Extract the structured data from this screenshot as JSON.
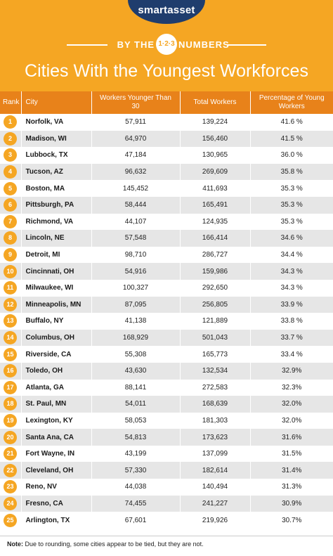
{
  "header": {
    "logo": "smartasset",
    "by_the": "BY THE",
    "badge": "1·2·3",
    "numbers": "NUMBERS",
    "title": "Cities With the Youngest Workforces",
    "background_color": "#f5a623",
    "logo_color": "#1f3d6d"
  },
  "table": {
    "columns": [
      "Rank",
      "City",
      "Workers Younger Than 30",
      "Total Workers",
      "Percentage of Young Workers"
    ],
    "header_color": "#e8821a",
    "rows": [
      {
        "rank": "1",
        "city": "Norfolk, VA",
        "young": "57,911",
        "total": "139,224",
        "pct": "41.6 %"
      },
      {
        "rank": "2",
        "city": "Madison, WI",
        "young": "64,970",
        "total": "156,460",
        "pct": "41.5 %"
      },
      {
        "rank": "3",
        "city": "Lubbock, TX",
        "young": "47,184",
        "total": "130,965",
        "pct": "36.0 %"
      },
      {
        "rank": "4",
        "city": "Tucson, AZ",
        "young": "96,632",
        "total": "269,609",
        "pct": "35.8 %"
      },
      {
        "rank": "5",
        "city": "Boston, MA",
        "young": "145,452",
        "total": "411,693",
        "pct": "35.3 %"
      },
      {
        "rank": "6",
        "city": "Pittsburgh, PA",
        "young": "58,444",
        "total": "165,491",
        "pct": "35.3 %"
      },
      {
        "rank": "7",
        "city": "Richmond, VA",
        "young": "44,107",
        "total": "124,935",
        "pct": "35.3 %"
      },
      {
        "rank": "8",
        "city": "Lincoln, NE",
        "young": "57,548",
        "total": "166,414",
        "pct": "34.6 %"
      },
      {
        "rank": "9",
        "city": "Detroit, MI",
        "young": "98,710",
        "total": "286,727",
        "pct": "34.4 %"
      },
      {
        "rank": "10",
        "city": "Cincinnati, OH",
        "young": "54,916",
        "total": "159,986",
        "pct": "34.3 %"
      },
      {
        "rank": "11",
        "city": "Milwaukee, WI",
        "young": "100,327",
        "total": "292,650",
        "pct": "34.3 %"
      },
      {
        "rank": "12",
        "city": "Minneapolis, MN",
        "young": "87,095",
        "total": "256,805",
        "pct": "33.9 %"
      },
      {
        "rank": "13",
        "city": "Buffalo, NY",
        "young": "41,138",
        "total": "121,889",
        "pct": "33.8 %"
      },
      {
        "rank": "14",
        "city": "Columbus, OH",
        "young": "168,929",
        "total": "501,043",
        "pct": "33.7 %"
      },
      {
        "rank": "15",
        "city": "Riverside, CA",
        "young": "55,308",
        "total": "165,773",
        "pct": "33.4 %"
      },
      {
        "rank": "16",
        "city": "Toledo, OH",
        "young": "43,630",
        "total": "132,534",
        "pct": "32.9%"
      },
      {
        "rank": "17",
        "city": "Atlanta, GA",
        "young": "88,141",
        "total": "272,583",
        "pct": "32.3%"
      },
      {
        "rank": "18",
        "city": "St. Paul, MN",
        "young": "54,011",
        "total": "168,639",
        "pct": "32.0%"
      },
      {
        "rank": "19",
        "city": "Lexington, KY",
        "young": "58,053",
        "total": "181,303",
        "pct": "32.0%"
      },
      {
        "rank": "20",
        "city": "Santa Ana, CA",
        "young": "54,813",
        "total": "173,623",
        "pct": "31.6%"
      },
      {
        "rank": "21",
        "city": "Fort Wayne, IN",
        "young": "43,199",
        "total": "137,099",
        "pct": "31.5%"
      },
      {
        "rank": "22",
        "city": "Cleveland, OH",
        "young": "57,330",
        "total": "182,614",
        "pct": "31.4%"
      },
      {
        "rank": "23",
        "city": "Reno, NV",
        "young": "44,038",
        "total": "140,494",
        "pct": "31.3%"
      },
      {
        "rank": "24",
        "city": "Fresno, CA",
        "young": "74,455",
        "total": "241,227",
        "pct": "30.9%"
      },
      {
        "rank": "25",
        "city": "Arlington, TX",
        "young": "67,601",
        "total": "219,926",
        "pct": "30.7%"
      }
    ]
  },
  "footer": {
    "note_label": "Note:",
    "note_text": " Due to rounding, some cities appear to be tied, but they are not."
  }
}
